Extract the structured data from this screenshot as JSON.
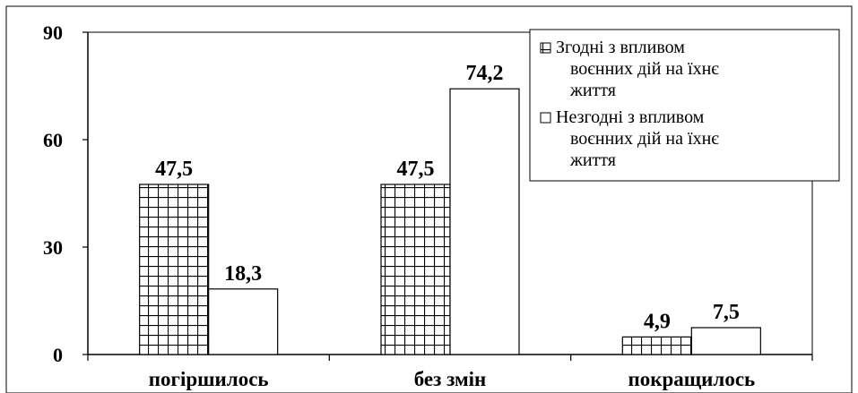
{
  "chart_data": {
    "type": "bar",
    "categories": [
      "погіршилось",
      "без змін",
      "покращилось"
    ],
    "series": [
      {
        "name": "Згодні з впливом воєнних дій на їхнє життя",
        "values": [
          47.5,
          47.5,
          4.9
        ],
        "labels": [
          "47,5",
          "47,5",
          "4,9"
        ],
        "fill": "grid-hatch"
      },
      {
        "name": "Незгодні з впливом воєнних дій на їхнє життя",
        "values": [
          18.3,
          74.2,
          7.5
        ],
        "labels": [
          "18,3",
          "74,2",
          "7,5"
        ],
        "fill": "white"
      }
    ],
    "ylim": [
      0,
      90
    ],
    "yticks": [
      0,
      30,
      60,
      90
    ],
    "ytick_labels": [
      "0",
      "30",
      "60",
      "90"
    ],
    "legend_position": "top-right",
    "grid": false,
    "title": "",
    "xlabel": "",
    "ylabel": ""
  },
  "legend": {
    "items": [
      {
        "line1": "Згодні з впливом",
        "line2": "воєнних дій на їхнє",
        "line3": "життя"
      },
      {
        "line1": "Незгодні з впливом",
        "line2": "воєнних дій на їхнє",
        "line3": "життя"
      }
    ]
  },
  "colors": {
    "stroke": "#000000",
    "background": "#ffffff"
  }
}
